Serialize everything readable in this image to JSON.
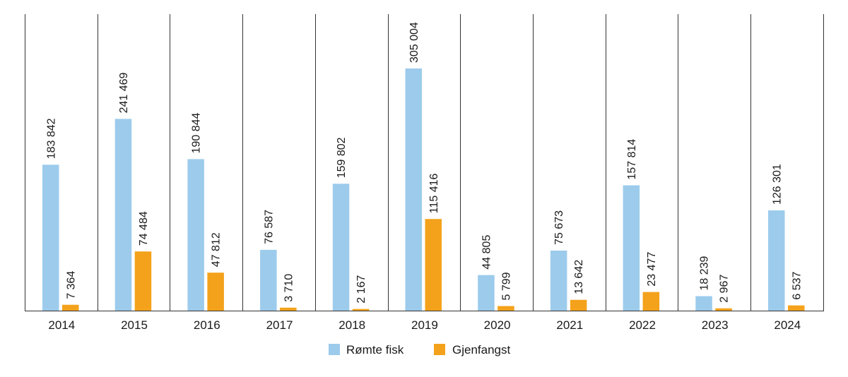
{
  "chart_data": {
    "type": "bar",
    "categories": [
      "2014",
      "2015",
      "2016",
      "2017",
      "2018",
      "2019",
      "2020",
      "2021",
      "2022",
      "2023",
      "2024"
    ],
    "series": [
      {
        "name": "Rømte fisk",
        "color": "#9ccbec",
        "values": [
          183842,
          241469,
          190844,
          76587,
          159802,
          305004,
          44805,
          75673,
          157814,
          18239,
          126301
        ],
        "labels": [
          "183 842",
          "241 469",
          "190 844",
          "76 587",
          "159 802",
          "305 004",
          "44 805",
          "75 673",
          "157 814",
          "18 239",
          "126 301"
        ]
      },
      {
        "name": "Gjenfangst",
        "color": "#f4a21b",
        "values": [
          7364,
          74484,
          47812,
          3710,
          2167,
          115416,
          5799,
          13642,
          23477,
          2967,
          6537
        ],
        "labels": [
          "7 364",
          "74 484",
          "47 812",
          "3 710",
          "2 167",
          "115 416",
          "5 799",
          "13 642",
          "23 477",
          "2 967",
          "6 537"
        ]
      }
    ],
    "grid": "vertical separators between categories",
    "legend_position": "bottom-center",
    "xlabel": "",
    "ylabel": ""
  }
}
